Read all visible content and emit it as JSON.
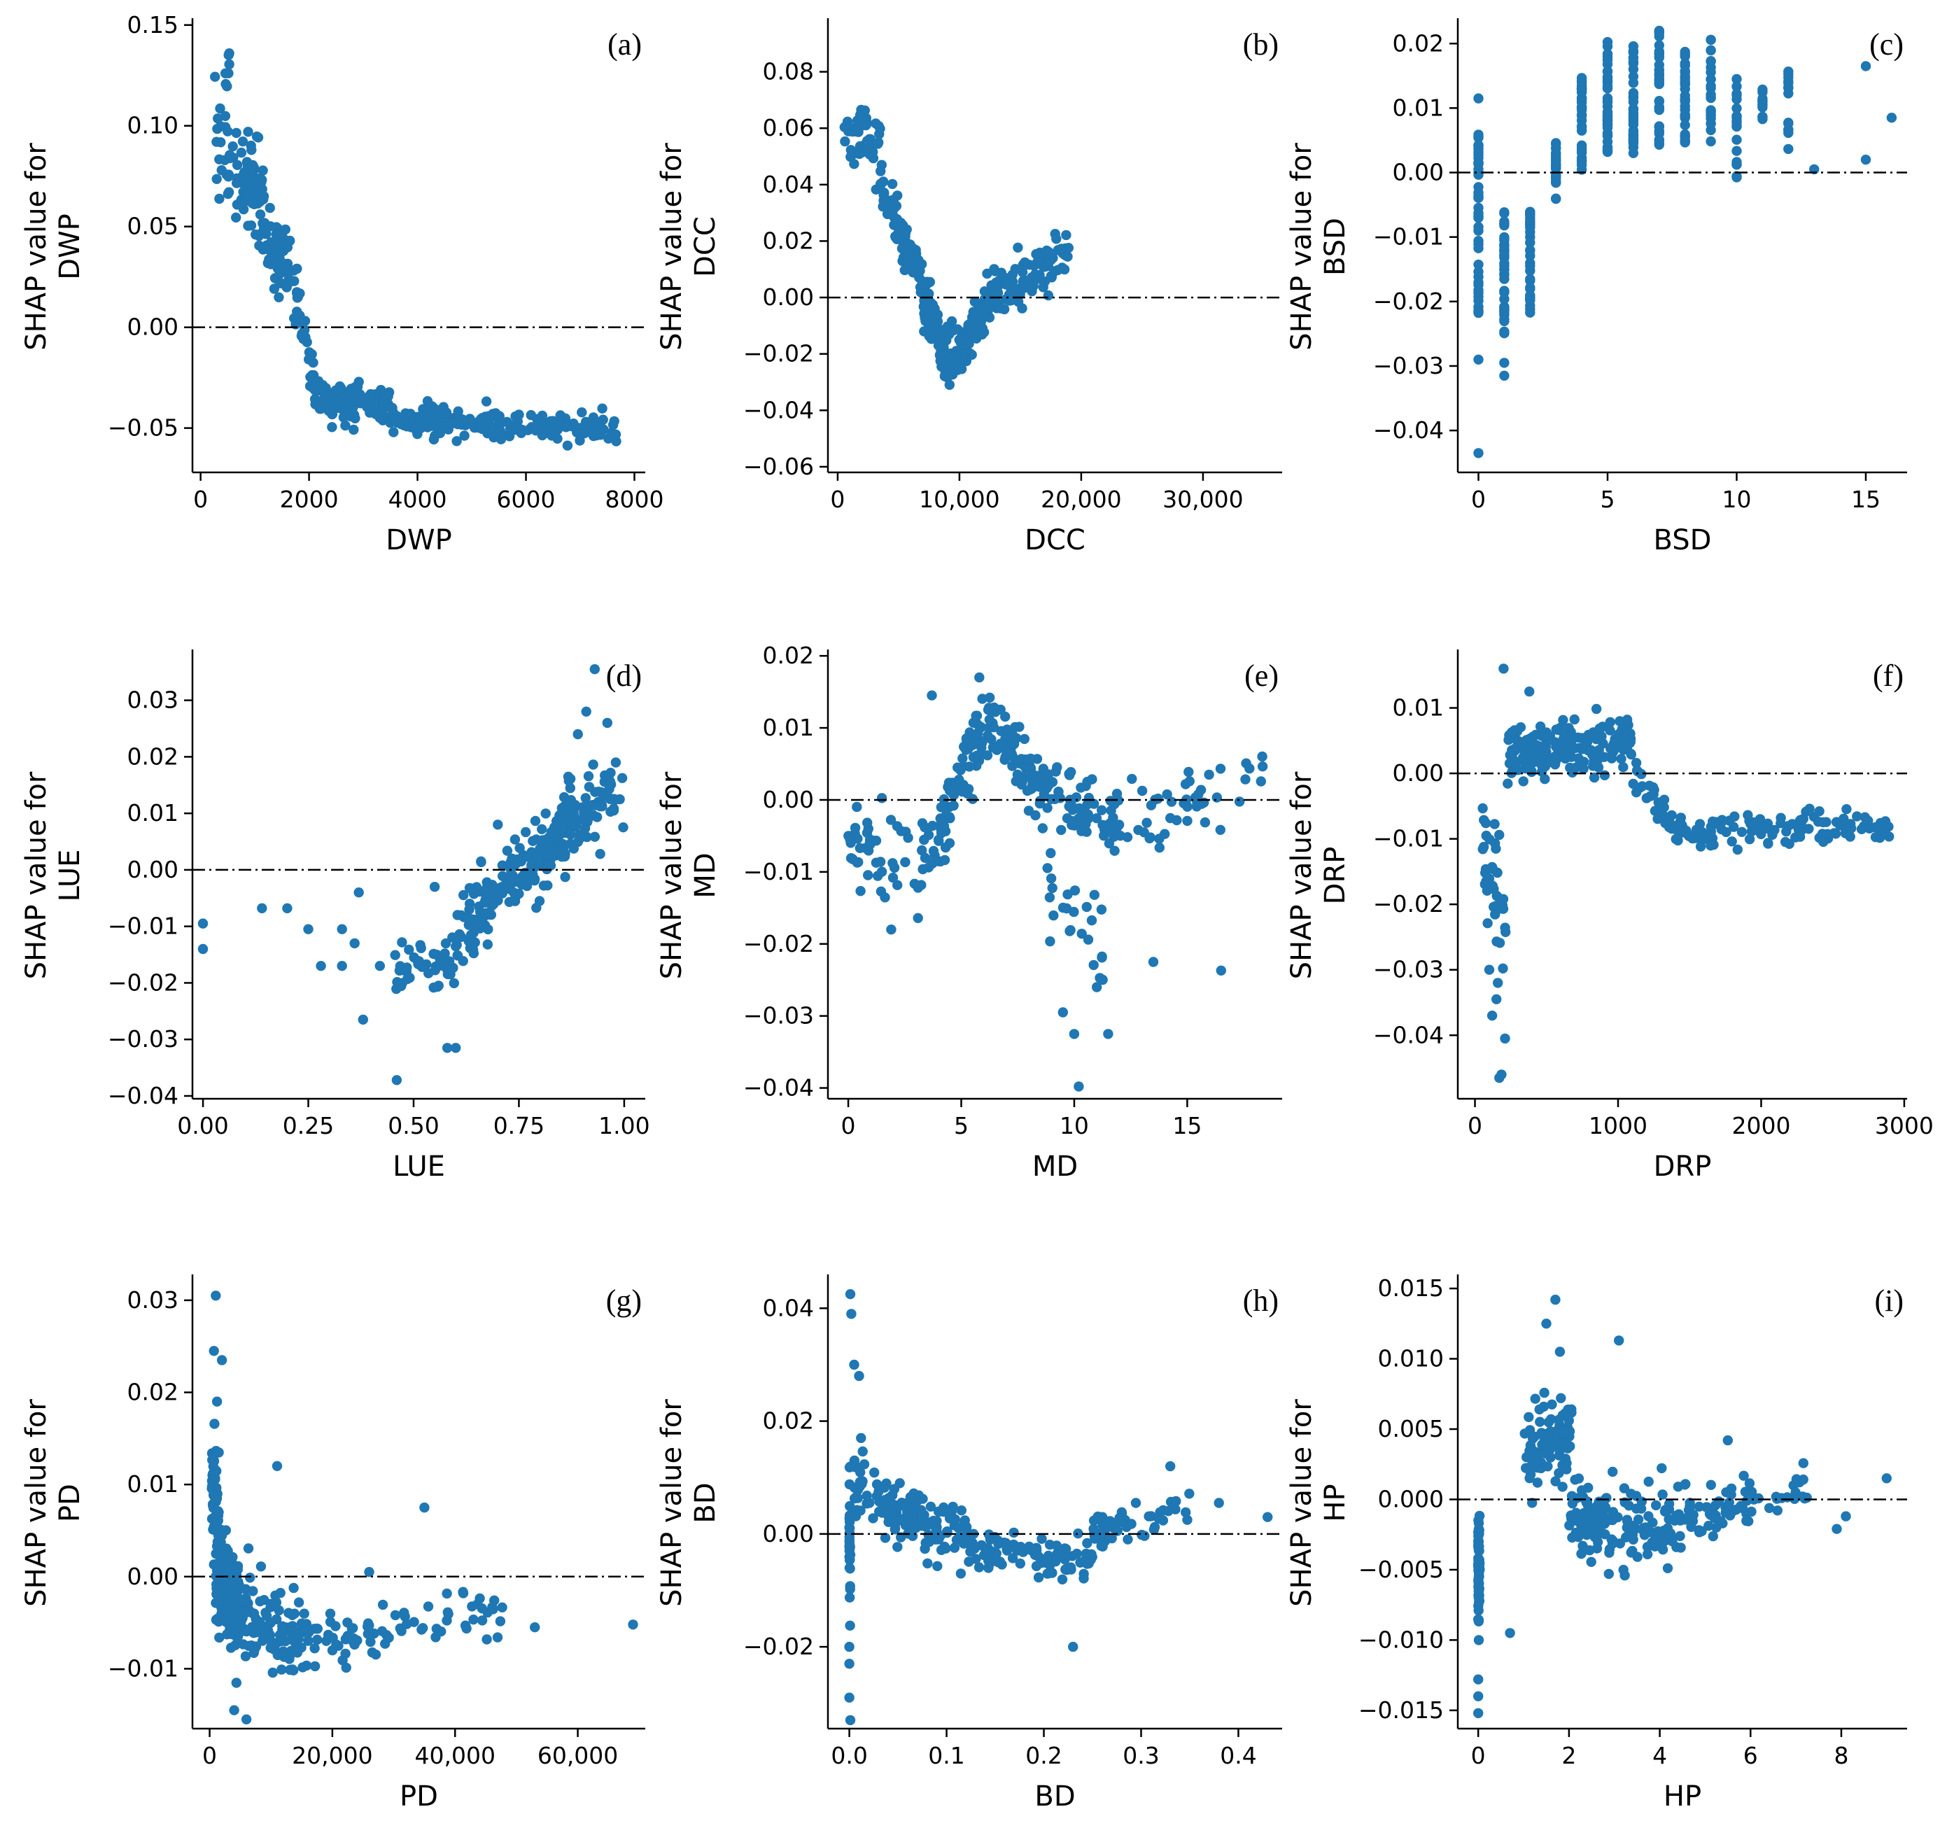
{
  "point_color": "#1f77b4",
  "chart_data": [
    {
      "type": "scatter",
      "tag": "(a)",
      "xlabel": "DWP",
      "ylabel": [
        "SHAP value for",
        "DWP"
      ],
      "xlim": [
        -150,
        8200
      ],
      "ylim": [
        -0.072,
        0.152
      ],
      "xticks": [
        0,
        2000,
        4000,
        6000,
        8000
      ],
      "xticklabels": [
        "0",
        "2000",
        "4000",
        "6000",
        "8000"
      ],
      "yticks": [
        -0.05,
        0.0,
        0.05,
        0.1,
        0.15
      ],
      "yticklabels": [
        "−0.05",
        "0.00",
        "0.05",
        "0.10",
        "0.15"
      ],
      "segments": [
        [
          250,
          0.085,
          700,
          0.075,
          30,
          0.028
        ],
        [
          450,
          0.12,
          550,
          0.135,
          8,
          0.012
        ],
        [
          750,
          0.075,
          1200,
          0.06,
          70,
          0.025
        ],
        [
          1200,
          0.045,
          1800,
          0.02,
          60,
          0.02
        ],
        [
          1800,
          0.01,
          2100,
          -0.03,
          25,
          0.015
        ],
        [
          2100,
          -0.035,
          3500,
          -0.038,
          120,
          0.01
        ],
        [
          3500,
          -0.045,
          5500,
          -0.048,
          110,
          0.008
        ],
        [
          5500,
          -0.05,
          7700,
          -0.05,
          80,
          0.007
        ]
      ]
    },
    {
      "type": "scatter",
      "tag": "(b)",
      "xlabel": "DCC",
      "ylabel": [
        "SHAP value for",
        "DCC"
      ],
      "xlim": [
        -800,
        36500
      ],
      "ylim": [
        -0.062,
        0.098
      ],
      "xticks": [
        0,
        10000,
        20000,
        30000
      ],
      "xticklabels": [
        "0",
        "10,000",
        "20,000",
        "30,000"
      ],
      "yticks": [
        -0.06,
        -0.04,
        -0.02,
        0.0,
        0.02,
        0.04,
        0.06,
        0.08
      ],
      "yticklabels": [
        "−0.06",
        "−0.04",
        "−0.02",
        "0.00",
        "0.02",
        "0.04",
        "0.06",
        "0.08"
      ],
      "segments": [
        [
          500,
          0.055,
          3500,
          0.055,
          45,
          0.01
        ],
        [
          3500,
          0.04,
          7000,
          0.005,
          90,
          0.008
        ],
        [
          7000,
          0.0,
          9500,
          -0.025,
          80,
          0.012
        ],
        [
          9500,
          -0.025,
          12500,
          0.0,
          80,
          0.008
        ],
        [
          12500,
          0.0,
          19000,
          0.015,
          100,
          0.01
        ]
      ]
    },
    {
      "type": "scatter",
      "tag": "(c)",
      "xlabel": "BSD",
      "ylabel": [
        "SHAP value for",
        "BSD"
      ],
      "xlim": [
        -0.8,
        16.6
      ],
      "ylim": [
        -0.0465,
        0.0235
      ],
      "xticks": [
        0,
        5,
        10,
        15
      ],
      "xticklabels": [
        "0",
        "5",
        "10",
        "15"
      ],
      "yticks": [
        -0.04,
        -0.03,
        -0.02,
        -0.01,
        0.0,
        0.01,
        0.02
      ],
      "yticklabels": [
        "−0.04",
        "−0.03",
        "−0.02",
        "−0.01",
        "0.00",
        "0.01",
        "0.02"
      ],
      "columns": [
        [
          0,
          -0.022,
          0.006,
          45
        ],
        [
          1,
          -0.025,
          -0.006,
          40
        ],
        [
          2,
          -0.022,
          -0.006,
          35
        ],
        [
          3,
          -0.005,
          0.005,
          25
        ],
        [
          4,
          0.0,
          0.015,
          35
        ],
        [
          5,
          0.003,
          0.021,
          40
        ],
        [
          6,
          0.003,
          0.02,
          35
        ],
        [
          7,
          0.004,
          0.022,
          35
        ],
        [
          8,
          0.004,
          0.019,
          30
        ],
        [
          9,
          0.004,
          0.021,
          25
        ],
        [
          10,
          -0.001,
          0.015,
          20
        ],
        [
          11,
          0.007,
          0.013,
          12
        ],
        [
          12,
          0.002,
          0.016,
          14
        ]
      ],
      "points": [
        [
          0,
          0.0115
        ],
        [
          0,
          -0.029
        ],
        [
          0,
          -0.0435
        ],
        [
          1,
          -0.0315
        ],
        [
          1,
          -0.0295
        ],
        [
          13,
          0.0005
        ],
        [
          15,
          0.0165
        ],
        [
          15,
          0.002
        ],
        [
          16,
          0.0085
        ]
      ]
    },
    {
      "type": "scatter",
      "tag": "(d)",
      "xlabel": "LUE",
      "ylabel": [
        "SHAP value for",
        "LUE"
      ],
      "xlim": [
        -0.025,
        1.05
      ],
      "ylim": [
        -0.0405,
        0.0385
      ],
      "xticks": [
        0,
        0.25,
        0.5,
        0.75,
        1.0
      ],
      "xticklabels": [
        "0.00",
        "0.25",
        "0.50",
        "0.75",
        "1.00"
      ],
      "yticks": [
        -0.04,
        -0.03,
        -0.02,
        -0.01,
        0.0,
        0.01,
        0.02,
        0.03
      ],
      "yticklabels": [
        "−0.04",
        "−0.03",
        "−0.02",
        "−0.01",
        "0.00",
        "0.01",
        "0.02",
        "0.03"
      ],
      "segments": [
        [
          0.45,
          -0.02,
          0.6,
          -0.015,
          45,
          0.006
        ],
        [
          0.6,
          -0.012,
          0.75,
          0.0,
          90,
          0.006
        ],
        [
          0.75,
          -0.002,
          0.88,
          0.01,
          110,
          0.006
        ],
        [
          0.85,
          0.008,
          1.0,
          0.016,
          80,
          0.007
        ]
      ],
      "points": [
        [
          0.0,
          -0.0095
        ],
        [
          0.0,
          -0.014
        ],
        [
          0.14,
          -0.0068
        ],
        [
          0.2,
          -0.0068
        ],
        [
          0.25,
          -0.0105
        ],
        [
          0.28,
          -0.017
        ],
        [
          0.33,
          -0.0105
        ],
        [
          0.36,
          -0.013
        ],
        [
          0.37,
          -0.004
        ],
        [
          0.38,
          -0.0265
        ],
        [
          0.46,
          -0.0372
        ],
        [
          0.33,
          -0.017
        ],
        [
          0.42,
          -0.017
        ],
        [
          0.93,
          0.0355
        ],
        [
          0.96,
          0.026
        ],
        [
          0.91,
          0.028
        ],
        [
          0.89,
          0.024
        ],
        [
          0.98,
          0.019
        ],
        [
          0.58,
          -0.0315
        ],
        [
          0.6,
          -0.0315
        ],
        [
          0.66,
          0.0015
        ],
        [
          0.7,
          0.008
        ],
        [
          0.55,
          -0.003
        ]
      ]
    },
    {
      "type": "scatter",
      "tag": "(e)",
      "xlabel": "MD",
      "ylabel": [
        "SHAP value for",
        "MD"
      ],
      "xlim": [
        -0.9,
        19.2
      ],
      "ylim": [
        -0.0415,
        0.0205
      ],
      "xticks": [
        0,
        5,
        10,
        15
      ],
      "xticklabels": [
        "0",
        "5",
        "10",
        "15"
      ],
      "yticks": [
        -0.04,
        -0.03,
        -0.02,
        -0.01,
        0.0,
        0.01,
        0.02
      ],
      "yticklabels": [
        "−0.04",
        "−0.03",
        "−0.02",
        "−0.01",
        "0.00",
        "0.01",
        "0.02"
      ],
      "segments": [
        [
          0,
          -0.006,
          4,
          -0.009,
          60,
          0.006
        ],
        [
          4,
          -0.005,
          6,
          0.011,
          70,
          0.005
        ],
        [
          6,
          0.011,
          8.5,
          0.002,
          80,
          0.004
        ],
        [
          8.5,
          0.002,
          12,
          -0.003,
          70,
          0.005
        ],
        [
          12,
          -0.004,
          18.5,
          0.003,
          45,
          0.005
        ],
        [
          8.5,
          -0.01,
          11.5,
          -0.022,
          25,
          0.006
        ]
      ],
      "points": [
        [
          10.2,
          -0.0398
        ],
        [
          10.0,
          -0.0325
        ],
        [
          11.5,
          -0.0325
        ],
        [
          16.5,
          -0.0237
        ],
        [
          13.5,
          -0.0225
        ],
        [
          3.7,
          0.0145
        ],
        [
          5.8,
          0.017
        ],
        [
          1.9,
          -0.018
        ],
        [
          9.5,
          -0.0295
        ],
        [
          11.0,
          -0.026
        ]
      ]
    },
    {
      "type": "scatter",
      "tag": "(f)",
      "xlabel": "DRP",
      "ylabel": [
        "SHAP value for",
        "DRP"
      ],
      "xlim": [
        -120,
        3020
      ],
      "ylim": [
        -0.0497,
        0.0185
      ],
      "xticks": [
        0,
        1000,
        2000,
        3000
      ],
      "xticklabels": [
        "0",
        "1000",
        "2000",
        "3000"
      ],
      "yticks": [
        -0.04,
        -0.03,
        -0.02,
        -0.01,
        0.0,
        0.01
      ],
      "yticklabels": [
        "−0.04",
        "−0.03",
        "−0.02",
        "−0.01",
        "0.00",
        "0.01"
      ],
      "segments": [
        [
          50,
          -0.01,
          220,
          -0.025,
          40,
          0.009
        ],
        [
          200,
          0.003,
          500,
          0.004,
          80,
          0.0045
        ],
        [
          500,
          0.004,
          1100,
          0.004,
          110,
          0.0035
        ],
        [
          1100,
          0.0,
          1400,
          -0.008,
          30,
          0.003
        ],
        [
          1400,
          -0.009,
          2900,
          -0.008,
          120,
          0.0025
        ]
      ],
      "points": [
        [
          170,
          -0.0465
        ],
        [
          185,
          -0.046
        ],
        [
          120,
          -0.037
        ],
        [
          150,
          -0.0345
        ],
        [
          200,
          0.016
        ],
        [
          380,
          0.0125
        ],
        [
          210,
          -0.0405
        ],
        [
          100,
          -0.03
        ],
        [
          160,
          -0.032
        ]
      ]
    },
    {
      "type": "scatter",
      "tag": "(g)",
      "xlabel": "PD",
      "ylabel": [
        "SHAP value for",
        "PD"
      ],
      "xlim": [
        -2800,
        71000
      ],
      "ylim": [
        -0.0165,
        0.0325
      ],
      "xticks": [
        0,
        20000,
        40000,
        60000
      ],
      "xticklabels": [
        "0",
        "20,000",
        "40,000",
        "60,000"
      ],
      "yticks": [
        -0.01,
        0.0,
        0.01,
        0.02,
        0.03
      ],
      "yticklabels": [
        "−0.01",
        "0.00",
        "0.01",
        "0.02",
        "0.03"
      ],
      "segments": [
        [
          300,
          0.012,
          1500,
          0.005,
          60,
          0.006
        ],
        [
          1000,
          0.0,
          5000,
          -0.004,
          150,
          0.005
        ],
        [
          5000,
          -0.004,
          15000,
          -0.007,
          100,
          0.0045
        ],
        [
          15000,
          -0.007,
          30000,
          -0.007,
          50,
          0.003
        ],
        [
          30000,
          -0.005,
          48000,
          -0.004,
          35,
          0.0025
        ]
      ],
      "points": [
        [
          1000,
          0.0305
        ],
        [
          700,
          0.0245
        ],
        [
          2000,
          0.0235
        ],
        [
          1200,
          0.019
        ],
        [
          35000,
          0.0075
        ],
        [
          69000,
          -0.0052
        ],
        [
          53000,
          -0.0055
        ],
        [
          26000,
          0.0005
        ],
        [
          11000,
          0.012
        ],
        [
          6000,
          -0.0155
        ],
        [
          4000,
          -0.0145
        ]
      ]
    },
    {
      "type": "scatter",
      "tag": "(h)",
      "xlabel": "BD",
      "ylabel": [
        "SHAP value for",
        "BD"
      ],
      "xlim": [
        -0.022,
        0.445
      ],
      "ylim": [
        -0.0345,
        0.0455
      ],
      "xticks": [
        0.0,
        0.1,
        0.2,
        0.3,
        0.4
      ],
      "xticklabels": [
        "0.0",
        "0.1",
        "0.2",
        "0.3",
        "0.4"
      ],
      "yticks": [
        -0.02,
        0.0,
        0.02,
        0.04
      ],
      "yticklabels": [
        "−0.02",
        "0.00",
        "0.02",
        "0.04"
      ],
      "segments": [
        [
          0.0,
          0.0,
          0.0,
          0.0,
          30,
          0.012
        ],
        [
          0.005,
          0.008,
          0.05,
          0.004,
          60,
          0.006
        ],
        [
          0.05,
          0.003,
          0.12,
          0.0,
          80,
          0.005
        ],
        [
          0.12,
          -0.002,
          0.25,
          -0.005,
          100,
          0.004
        ],
        [
          0.25,
          0.0,
          0.35,
          0.006,
          50,
          0.004
        ]
      ],
      "points": [
        [
          0.001,
          0.0425
        ],
        [
          0.002,
          0.039
        ],
        [
          0.001,
          -0.033
        ],
        [
          0.0,
          -0.029
        ],
        [
          0.005,
          0.03
        ],
        [
          0.01,
          0.028
        ],
        [
          0.012,
          0.017
        ],
        [
          0.0,
          -0.023
        ],
        [
          0.0,
          -0.02
        ],
        [
          0.38,
          0.0055
        ],
        [
          0.43,
          0.003
        ],
        [
          0.23,
          -0.02
        ],
        [
          0.33,
          0.012
        ]
      ]
    },
    {
      "type": "scatter",
      "tag": "(i)",
      "xlabel": "HP",
      "ylabel": [
        "SHAP value for",
        "HP"
      ],
      "xlim": [
        -0.45,
        9.45
      ],
      "ylim": [
        -0.0163,
        0.0158
      ],
      "xticks": [
        0,
        2,
        4,
        6,
        8
      ],
      "xticklabels": [
        "0",
        "2",
        "4",
        "6",
        "8"
      ],
      "yticks": [
        -0.015,
        -0.01,
        -0.005,
        0.0,
        0.005,
        0.01,
        0.015
      ],
      "yticklabels": [
        "−0.015",
        "−0.010",
        "−0.005",
        "0.000",
        "0.005",
        "0.010",
        "0.015"
      ],
      "segments": [
        [
          0,
          -0.005,
          0,
          -0.005,
          70,
          0.004
        ],
        [
          1.0,
          0.003,
          2.1,
          0.005,
          90,
          0.003
        ],
        [
          2.0,
          -0.001,
          3.0,
          -0.002,
          90,
          0.0028
        ],
        [
          3.0,
          -0.002,
          4.5,
          -0.002,
          70,
          0.0028
        ],
        [
          4.5,
          -0.001,
          6.0,
          0.0,
          50,
          0.0022
        ],
        [
          6.0,
          0.0,
          7.5,
          0.001,
          20,
          0.0015
        ]
      ],
      "points": [
        [
          1.7,
          0.0142
        ],
        [
          1.5,
          0.0125
        ],
        [
          3.1,
          0.0113
        ],
        [
          1.8,
          0.0105
        ],
        [
          0.0,
          -0.0152
        ],
        [
          0.0,
          -0.014
        ],
        [
          0.0,
          -0.0128
        ],
        [
          9.0,
          0.0015
        ],
        [
          8.1,
          -0.0012
        ],
        [
          7.9,
          -0.0021
        ],
        [
          0.7,
          -0.0095
        ],
        [
          5.5,
          0.0042
        ]
      ]
    }
  ]
}
